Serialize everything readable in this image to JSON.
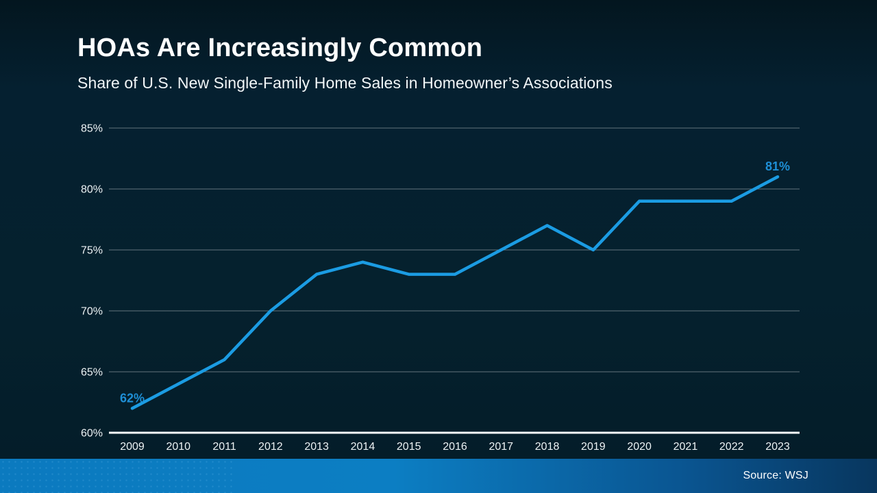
{
  "header": {
    "title": "HOAs Are Increasingly Common",
    "subtitle": "Share of U.S. New Single-Family Home Sales in Homeowner’s Associations"
  },
  "footer": {
    "source": "Source: WSJ"
  },
  "colors": {
    "background": "#05212E",
    "line": "#1B9CE3",
    "value_label": "#1E8FD6",
    "gridline": "#76838B",
    "axis": "#F4F7F8",
    "tick_text": "#EDF2F4",
    "title_text": "#FFFFFF",
    "footer_left": "#0B7ABF",
    "footer_right": "#08365E"
  },
  "chart_data": {
    "type": "line",
    "title": "HOAs Are Increasingly Common",
    "subtitle": "Share of U.S. New Single-Family Home Sales in Homeowner’s Associations",
    "x": [
      2009,
      2010,
      2011,
      2012,
      2013,
      2014,
      2015,
      2016,
      2017,
      2018,
      2019,
      2020,
      2021,
      2022,
      2023
    ],
    "values": [
      62,
      64,
      66,
      70,
      73,
      74,
      73,
      73,
      75,
      77,
      75,
      79,
      79,
      79,
      81
    ],
    "unit": "%",
    "ylim": [
      60,
      85
    ],
    "yticks": [
      {
        "value": 60,
        "label": "60%"
      },
      {
        "value": 65,
        "label": "65%"
      },
      {
        "value": 70,
        "label": "70%"
      },
      {
        "value": 75,
        "label": "75%"
      },
      {
        "value": 80,
        "label": "80%"
      },
      {
        "value": 85,
        "label": "85%"
      }
    ],
    "grid": "horizontal",
    "legend": "none",
    "annotations": [
      {
        "x": 2009,
        "label": "62%"
      },
      {
        "x": 2023,
        "label": "81%"
      }
    ],
    "source": "Source: WSJ"
  }
}
